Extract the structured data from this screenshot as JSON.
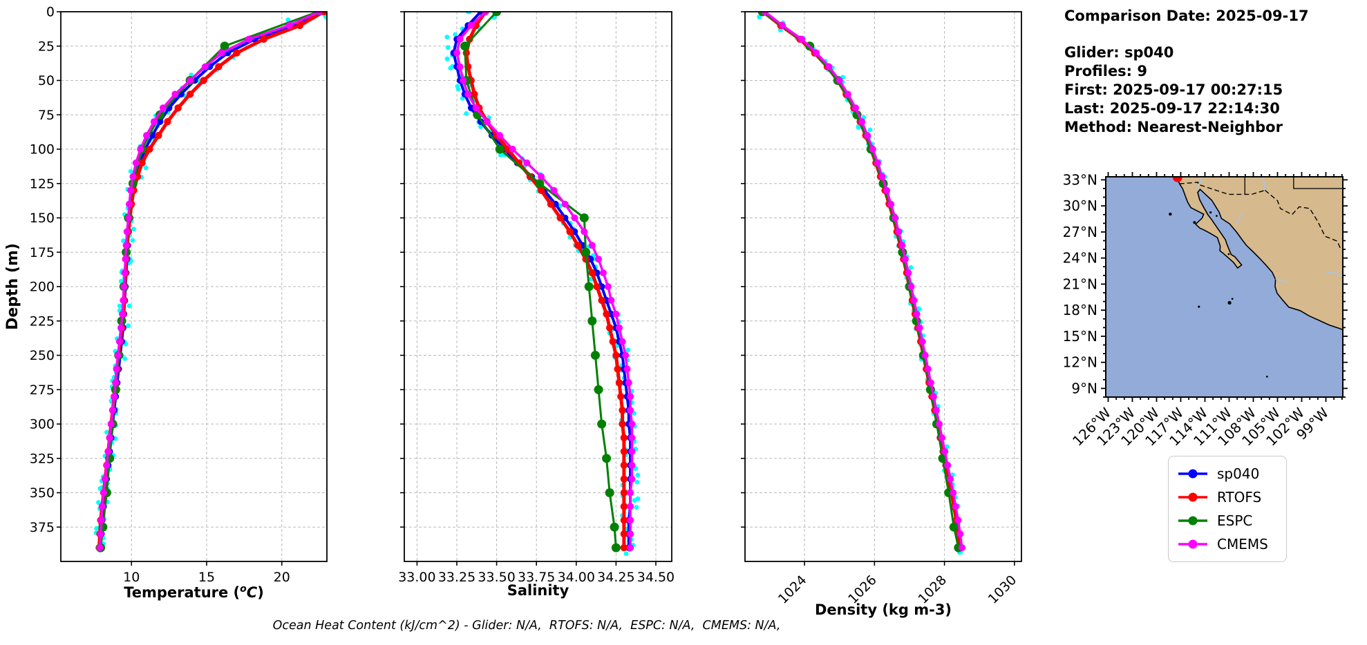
{
  "info_panel": {
    "lines": [
      "Comparison Date: 2025-09-17",
      "Glider: sp040",
      "Profiles: 9",
      "First: 2025-09-17 00:27:15",
      "Last: 2025-09-17 22:14:30",
      "Method: Nearest-Neighbor"
    ]
  },
  "footer": {
    "text": "Ocean Heat Content (kJ/cm^2) - Glider: N/A,  RTOFS: N/A,  ESPC: N/A,  CMEMS: N/A,"
  },
  "legend": {
    "items": [
      {
        "label": "sp040",
        "color": "#0000ff"
      },
      {
        "label": "RTOFS",
        "color": "#ff0000"
      },
      {
        "label": "ESPC",
        "color": "#008000"
      },
      {
        "label": "CMEMS",
        "color": "#ff00ff"
      }
    ]
  },
  "series_styles": {
    "sp040": {
      "color": "#0000ff",
      "line_width": 4,
      "marker_radius": 4.8
    },
    "RTOFS": {
      "color": "#ff0000",
      "line_width": 5,
      "marker_radius": 5.2
    },
    "ESPC": {
      "color": "#008000",
      "line_width": 3,
      "marker_radius": 6.5
    },
    "CMEMS": {
      "color": "#ff00ff",
      "line_width": 3.5,
      "marker_radius": 5.0
    }
  },
  "depth_grids": {
    "d10": [
      0,
      10,
      20,
      30,
      40,
      50,
      60,
      70,
      80,
      90,
      100,
      110,
      120,
      130,
      140,
      150,
      160,
      170,
      180,
      190,
      200,
      210,
      220,
      230,
      240,
      250,
      260,
      270,
      280,
      290,
      300,
      310,
      320,
      330,
      340,
      350,
      360,
      370,
      380,
      390
    ],
    "d25": [
      0,
      25,
      50,
      75,
      100,
      125,
      150,
      175,
      200,
      225,
      250,
      275,
      300,
      325,
      350,
      375,
      390
    ]
  },
  "chart_data": [
    {
      "id": "temperature-profile",
      "type": "line",
      "xlabel_rich": [
        {
          "t": "Temperature ("
        },
        {
          "t": "o",
          "sup": true
        },
        {
          "t": "C",
          "it": true
        },
        {
          "t": ")"
        }
      ],
      "ylabel": "Depth (m)",
      "xlim": [
        5.3,
        23.0
      ],
      "xticks": [
        10,
        15,
        20
      ],
      "xtick_labels": [
        "10",
        "15",
        "20"
      ],
      "xtick_rotate": false,
      "ylim": [
        0,
        400
      ],
      "yticks": [
        0,
        25,
        50,
        75,
        100,
        125,
        150,
        175,
        200,
        225,
        250,
        275,
        300,
        325,
        350,
        375
      ],
      "ytick_labels": [
        "0",
        "25",
        "50",
        "75",
        "100",
        "125",
        "150",
        "175",
        "200",
        "225",
        "250",
        "275",
        "300",
        "325",
        "350",
        "375"
      ],
      "show_ytick_labels": true,
      "grid": true,
      "scatter": {
        "name": "glider-raw-points",
        "color": "#00ffff",
        "r": 3.4,
        "jitter": 0.35,
        "boost": 1.3,
        "tau": 40,
        "per_node": 3
      },
      "series": [
        {
          "name": "sp040",
          "grid": "d10",
          "values": [
            22.6,
            20.8,
            18.2,
            16.4,
            15.2,
            14.2,
            13.3,
            12.5,
            11.9,
            11.4,
            10.9,
            10.6,
            10.3,
            10.1,
            10.0,
            9.9,
            9.8,
            9.75,
            9.7,
            9.65,
            9.6,
            9.55,
            9.5,
            9.45,
            9.35,
            9.25,
            9.15,
            9.05,
            8.95,
            8.85,
            8.75,
            8.65,
            8.55,
            8.45,
            8.35,
            8.25,
            8.15,
            8.05,
            8.0,
            7.95
          ]
        },
        {
          "name": "RTOFS",
          "grid": "d10",
          "values": [
            22.8,
            21.2,
            18.8,
            17.0,
            15.8,
            14.8,
            13.9,
            13.1,
            12.4,
            11.8,
            11.2,
            10.7,
            10.4,
            10.15,
            10.0,
            9.9,
            9.8,
            9.7,
            9.65,
            9.6,
            9.55,
            9.5,
            9.45,
            9.35,
            9.25,
            9.15,
            9.05,
            8.95,
            8.85,
            8.75,
            8.65,
            8.55,
            8.45,
            8.35,
            8.25,
            8.15,
            8.05,
            7.95,
            7.9,
            7.85
          ]
        },
        {
          "name": "ESPC",
          "grid": "d25",
          "values": [
            22.4,
            16.2,
            13.9,
            11.9,
            10.7,
            10.1,
            9.8,
            9.65,
            9.5,
            9.35,
            9.15,
            8.95,
            8.75,
            8.55,
            8.35,
            8.1,
            7.95
          ]
        },
        {
          "name": "CMEMS",
          "grid": "d10",
          "values": [
            22.5,
            20.5,
            17.8,
            16.0,
            14.9,
            13.9,
            12.9,
            12.1,
            11.5,
            11.0,
            10.6,
            10.3,
            10.1,
            9.95,
            9.85,
            9.8,
            9.7,
            9.65,
            9.6,
            9.55,
            9.5,
            9.45,
            9.4,
            9.3,
            9.2,
            9.1,
            9.0,
            8.95,
            8.85,
            8.75,
            8.65,
            8.55,
            8.45,
            8.35,
            8.25,
            8.15,
            8.05,
            8.0,
            7.95,
            7.9
          ]
        }
      ]
    },
    {
      "id": "salinity-profile",
      "type": "line",
      "xlabel": "Salinity",
      "xlim": [
        32.92,
        34.6
      ],
      "xticks": [
        33.0,
        33.25,
        33.5,
        33.75,
        34.0,
        34.25,
        34.5
      ],
      "xtick_labels": [
        "33.00",
        "33.25",
        "33.50",
        "33.75",
        "34.00",
        "34.25",
        "34.50"
      ],
      "xtick_rotate": false,
      "ylim": [
        0,
        400
      ],
      "yticks": [
        0,
        25,
        50,
        75,
        100,
        125,
        150,
        175,
        200,
        225,
        250,
        275,
        300,
        325,
        350,
        375
      ],
      "show_ytick_labels": false,
      "grid": true,
      "scatter": {
        "name": "glider-raw-points",
        "color": "#00ffff",
        "r": 3.4,
        "jitter": 0.05,
        "boost": 0.8,
        "tau": 80,
        "per_node": 3
      },
      "series": [
        {
          "name": "sp040",
          "grid": "d10",
          "values": [
            33.4,
            33.32,
            33.25,
            33.23,
            33.25,
            33.27,
            33.3,
            33.34,
            33.4,
            33.47,
            33.55,
            33.63,
            33.72,
            33.8,
            33.87,
            33.93,
            33.99,
            34.04,
            34.09,
            34.13,
            34.16,
            34.19,
            34.22,
            34.25,
            34.27,
            34.29,
            34.3,
            34.31,
            34.32,
            34.33,
            34.33,
            34.34,
            34.34,
            34.34,
            34.34,
            34.34,
            34.34,
            34.33,
            34.33,
            34.33
          ]
        },
        {
          "name": "RTOFS",
          "grid": "d10",
          "values": [
            33.43,
            33.37,
            33.33,
            33.31,
            33.32,
            33.34,
            33.36,
            33.39,
            33.44,
            33.5,
            33.57,
            33.64,
            33.71,
            33.78,
            33.84,
            33.9,
            33.96,
            34.01,
            34.06,
            34.1,
            34.13,
            34.16,
            34.19,
            34.21,
            34.23,
            34.25,
            34.26,
            34.27,
            34.28,
            34.29,
            34.29,
            34.3,
            34.3,
            34.3,
            34.3,
            34.3,
            34.3,
            34.3,
            34.3,
            34.3
          ]
        },
        {
          "name": "ESPC",
          "grid": "d25",
          "values": [
            33.5,
            33.3,
            33.31,
            33.38,
            33.52,
            33.77,
            34.05,
            34.06,
            34.08,
            34.1,
            34.12,
            34.14,
            34.16,
            34.19,
            34.21,
            34.24,
            34.25
          ]
        },
        {
          "name": "CMEMS",
          "grid": "d10",
          "values": [
            33.43,
            33.34,
            33.27,
            33.25,
            33.27,
            33.29,
            33.32,
            33.37,
            33.44,
            33.52,
            33.6,
            33.69,
            33.78,
            33.86,
            33.93,
            33.99,
            34.05,
            34.1,
            34.14,
            34.17,
            34.2,
            34.22,
            34.25,
            34.27,
            34.29,
            34.31,
            34.32,
            34.33,
            34.34,
            34.34,
            34.35,
            34.35,
            34.35,
            34.35,
            34.35,
            34.34,
            34.34,
            34.34,
            34.34,
            34.34
          ]
        }
      ]
    },
    {
      "id": "density-profile",
      "type": "line",
      "xlabel": "Density (kg m-3)",
      "xlim": [
        1022.3,
        1030.2
      ],
      "xticks": [
        1024,
        1026,
        1028,
        1030
      ],
      "xtick_labels": [
        "1024",
        "1026",
        "1028",
        "1030"
      ],
      "xtick_rotate": true,
      "ylim": [
        0,
        400
      ],
      "yticks": [
        0,
        25,
        50,
        75,
        100,
        125,
        150,
        175,
        200,
        225,
        250,
        275,
        300,
        325,
        350,
        375
      ],
      "show_ytick_labels": false,
      "grid": true,
      "scatter": {
        "name": "glider-raw-points",
        "color": "#00ffff",
        "r": 3.4,
        "jitter": 0.09,
        "boost": 0.6,
        "tau": 80,
        "per_node": 3
      },
      "series": [
        {
          "name": "sp040",
          "grid": "d10",
          "values": [
            1022.85,
            1023.35,
            1023.9,
            1024.32,
            1024.68,
            1024.98,
            1025.22,
            1025.44,
            1025.62,
            1025.78,
            1025.93,
            1026.07,
            1026.2,
            1026.33,
            1026.45,
            1026.57,
            1026.67,
            1026.77,
            1026.86,
            1026.95,
            1027.03,
            1027.11,
            1027.19,
            1027.27,
            1027.35,
            1027.43,
            1027.51,
            1027.59,
            1027.67,
            1027.75,
            1027.83,
            1027.91,
            1027.99,
            1028.07,
            1028.15,
            1028.23,
            1028.3,
            1028.37,
            1028.43,
            1028.48
          ]
        },
        {
          "name": "RTOFS",
          "grid": "d10",
          "values": [
            1022.82,
            1023.32,
            1023.87,
            1024.29,
            1024.65,
            1024.95,
            1025.19,
            1025.41,
            1025.59,
            1025.75,
            1025.9,
            1026.04,
            1026.17,
            1026.3,
            1026.42,
            1026.54,
            1026.64,
            1026.74,
            1026.83,
            1026.92,
            1027.0,
            1027.08,
            1027.16,
            1027.24,
            1027.32,
            1027.4,
            1027.48,
            1027.56,
            1027.64,
            1027.72,
            1027.8,
            1027.88,
            1027.96,
            1028.04,
            1028.12,
            1028.2,
            1028.27,
            1028.34,
            1028.4,
            1028.45
          ]
        },
        {
          "name": "ESPC",
          "grid": "d25",
          "values": [
            1022.8,
            1024.15,
            1024.95,
            1025.5,
            1025.9,
            1026.25,
            1026.55,
            1026.8,
            1027.0,
            1027.2,
            1027.4,
            1027.6,
            1027.78,
            1027.95,
            1028.12,
            1028.27,
            1028.4
          ]
        },
        {
          "name": "CMEMS",
          "grid": "d10",
          "values": [
            1022.87,
            1023.37,
            1023.92,
            1024.34,
            1024.7,
            1025.0,
            1025.24,
            1025.46,
            1025.64,
            1025.8,
            1025.95,
            1026.09,
            1026.22,
            1026.35,
            1026.47,
            1026.59,
            1026.69,
            1026.79,
            1026.88,
            1026.97,
            1027.05,
            1027.13,
            1027.21,
            1027.29,
            1027.37,
            1027.45,
            1027.53,
            1027.61,
            1027.69,
            1027.77,
            1027.85,
            1027.93,
            1028.01,
            1028.09,
            1028.17,
            1028.25,
            1028.32,
            1028.39,
            1028.45,
            1028.5
          ]
        }
      ]
    },
    {
      "id": "location-map",
      "type": "map",
      "lat_ticks": [
        {
          "value": 33,
          "label": "33°N"
        },
        {
          "value": 30,
          "label": "30°N"
        },
        {
          "value": 27,
          "label": "27°N"
        },
        {
          "value": 24,
          "label": "24°N"
        },
        {
          "value": 21,
          "label": "21°N"
        },
        {
          "value": 18,
          "label": "18°N"
        },
        {
          "value": 15,
          "label": "15°N"
        },
        {
          "value": 12,
          "label": "12°N"
        },
        {
          "value": 9,
          "label": "9°N"
        }
      ],
      "lon_ticks": [
        {
          "value": -126,
          "label": "126°W"
        },
        {
          "value": -123,
          "label": "123°W"
        },
        {
          "value": -120,
          "label": "120°W"
        },
        {
          "value": -117,
          "label": "117°W"
        },
        {
          "value": -114,
          "label": "114°W"
        },
        {
          "value": -111,
          "label": "111°W"
        },
        {
          "value": -108,
          "label": "108°W"
        },
        {
          "value": -105,
          "label": "105°W"
        },
        {
          "value": -102,
          "label": "102°W"
        },
        {
          "value": -99,
          "label": "99°W"
        }
      ],
      "lon_range": [
        -126.3,
        -96.9
      ],
      "lat_range": [
        8.0,
        33.35
      ],
      "ocean_color": "#92abd9",
      "land_color": "#d6b98c",
      "river_color": "#a9c6e8",
      "glider_marker": {
        "lon": -117.4,
        "lat": 33.3,
        "color": "#ff0000"
      }
    }
  ]
}
